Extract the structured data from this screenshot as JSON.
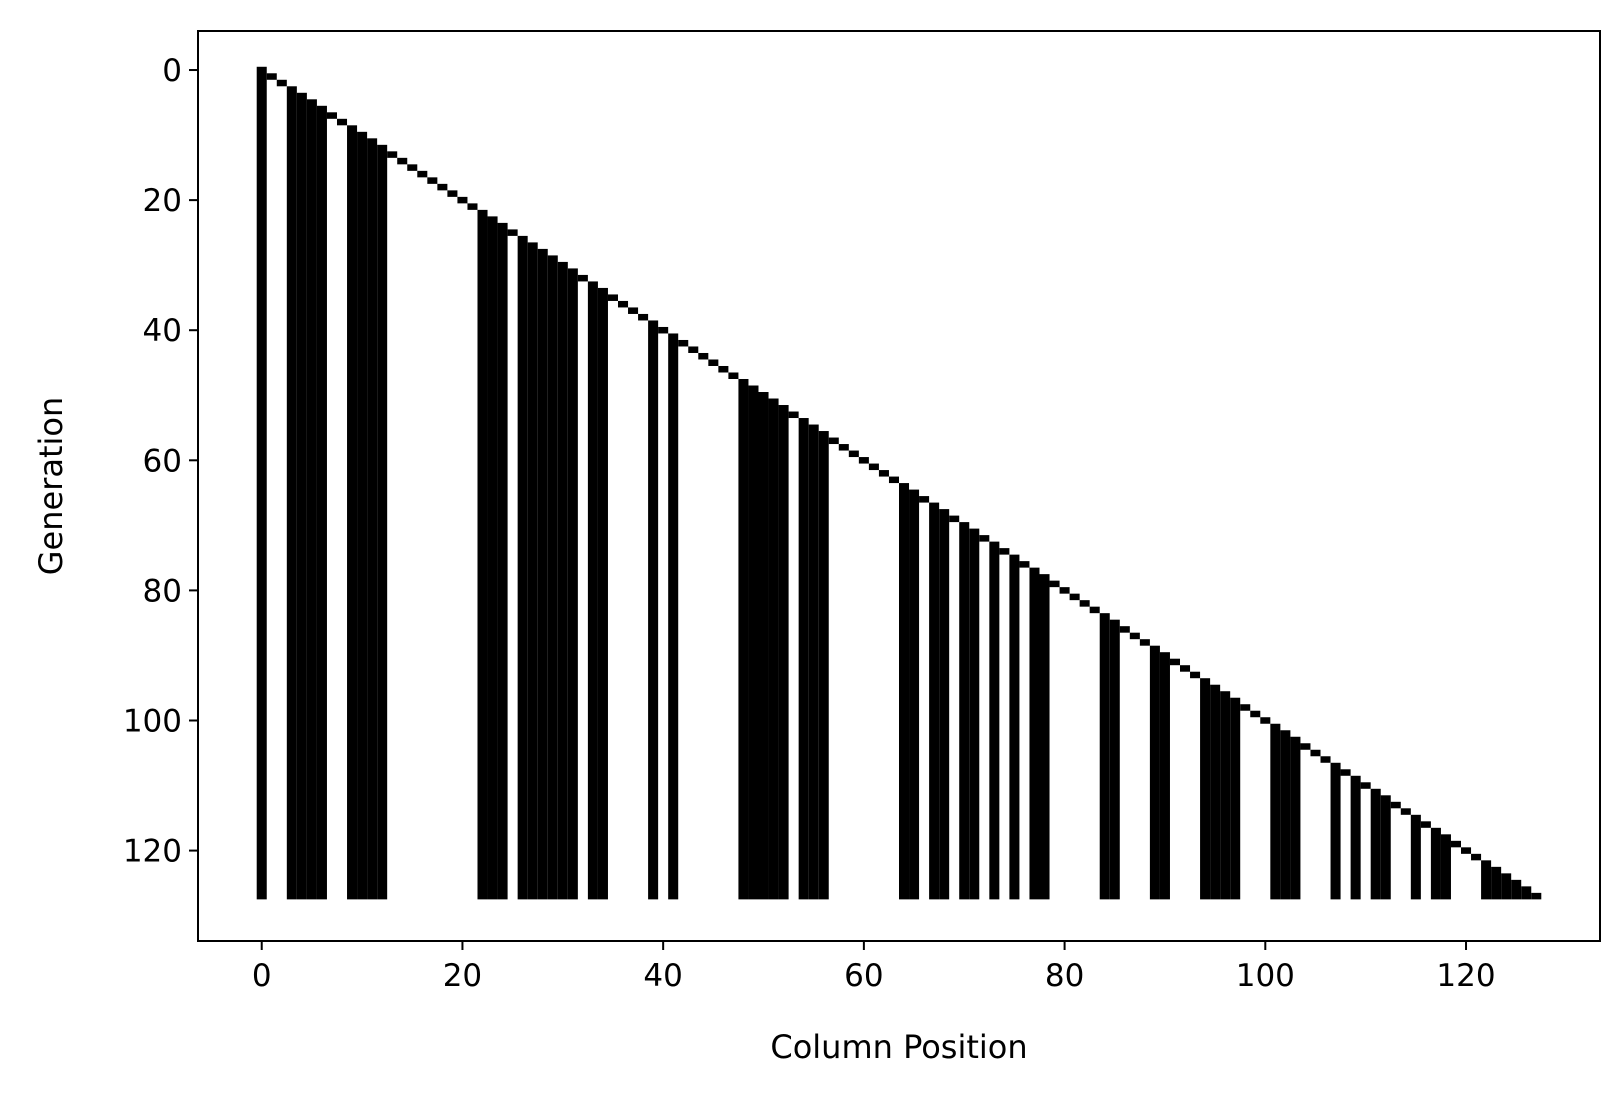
{
  "chart_data": {
    "type": "heatmap",
    "title": "",
    "xlabel": "Column Position",
    "ylabel": "Generation",
    "xlim": [
      -6.35,
      133.35
    ],
    "ylim": [
      133.9,
      -6.0
    ],
    "y_inverted": true,
    "xticks": [
      0,
      20,
      40,
      60,
      80,
      100,
      120
    ],
    "yticks": [
      0,
      20,
      40,
      60,
      80,
      100,
      120
    ],
    "rows": 128,
    "cols": 128,
    "cell_color": "#000000",
    "background_color": "#ffffff",
    "grid": false,
    "description_rule": "Each generation g has a filled cell at column g (leading edge of the diagonal) until generation 127. The listed columns stay filled from their first appearance down to the last generation.",
    "diagonal": {
      "start": 0,
      "end": 127
    },
    "persistent_columns": [
      0,
      3,
      4,
      5,
      6,
      9,
      10,
      11,
      12,
      22,
      23,
      24,
      26,
      27,
      28,
      29,
      30,
      31,
      33,
      34,
      39,
      41,
      48,
      49,
      50,
      51,
      52,
      54,
      55,
      56,
      64,
      65,
      67,
      68,
      70,
      71,
      73,
      75,
      77,
      78,
      84,
      85,
      89,
      90,
      94,
      95,
      96,
      97,
      101,
      102,
      103,
      107,
      109,
      111,
      112,
      115,
      117,
      118,
      122,
      123,
      124,
      125,
      126
    ]
  }
}
